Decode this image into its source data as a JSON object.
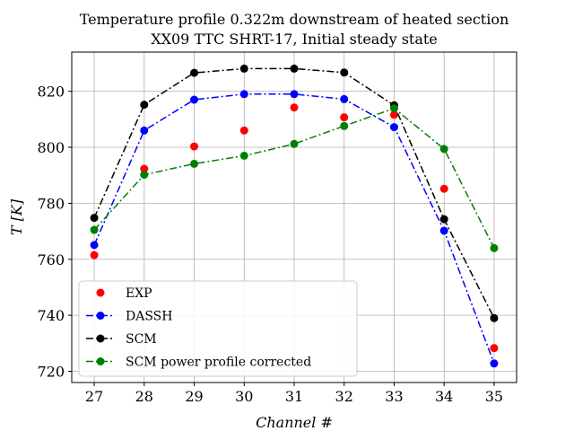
{
  "chart_data": {
    "type": "line",
    "title": "Temperature profile 0.322m downstream of heated section",
    "subtitle": "XX09 TTC SHRT-17, Initial steady state",
    "xlabel": "Channel #",
    "ylabel": "T [K]",
    "x": [
      27,
      28,
      29,
      30,
      31,
      32,
      33,
      34,
      35
    ],
    "xlim": [
      26.55,
      35.45
    ],
    "ylim": [
      716,
      834
    ],
    "x_ticks": [
      27,
      28,
      29,
      30,
      31,
      32,
      33,
      34,
      35
    ],
    "y_ticks": [
      720,
      740,
      760,
      780,
      800,
      820
    ],
    "grid": true,
    "legend_position": "lower-left",
    "series": [
      {
        "name": "EXP",
        "color": "#ff0000",
        "style": "markers",
        "values": [
          761.5,
          792.3,
          800.3,
          806.0,
          814.2,
          810.7,
          811.6,
          785.2,
          728.3
        ]
      },
      {
        "name": "DASSH",
        "color": "#0000ff",
        "style": "dashdot",
        "values": [
          765.1,
          806.0,
          817.0,
          819.0,
          819.0,
          817.2,
          807.2,
          770.2,
          722.8
        ]
      },
      {
        "name": "SCM",
        "color": "#000000",
        "style": "dashdot",
        "values": [
          774.8,
          815.2,
          826.6,
          828.1,
          828.1,
          826.7,
          815.0,
          774.3,
          739.0
        ]
      },
      {
        "name": "SCM power profile corrected",
        "color": "#008000",
        "style": "dashdot",
        "values": [
          770.5,
          790.2,
          794.1,
          797.0,
          801.2,
          807.6,
          813.9,
          799.4,
          764.0
        ]
      }
    ]
  }
}
